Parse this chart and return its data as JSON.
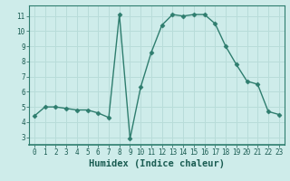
{
  "x": [
    0,
    1,
    2,
    3,
    4,
    5,
    6,
    7,
    8,
    9,
    10,
    11,
    12,
    13,
    14,
    15,
    16,
    17,
    18,
    19,
    20,
    21,
    22,
    23
  ],
  "y": [
    4.4,
    5.0,
    5.0,
    4.9,
    4.8,
    4.8,
    4.6,
    4.3,
    11.1,
    2.9,
    6.3,
    8.6,
    10.4,
    11.1,
    11.0,
    11.1,
    11.1,
    10.5,
    9.0,
    7.8,
    6.7,
    6.5,
    4.7,
    4.5
  ],
  "line_color": "#2e7d6e",
  "marker": "D",
  "markersize": 2.5,
  "linewidth": 1.0,
  "xlabel": "Humidex (Indice chaleur)",
  "xlim": [
    -0.5,
    23.5
  ],
  "ylim": [
    2.5,
    11.7
  ],
  "xticks": [
    0,
    1,
    2,
    3,
    4,
    5,
    6,
    7,
    8,
    9,
    10,
    11,
    12,
    13,
    14,
    15,
    16,
    17,
    18,
    19,
    20,
    21,
    22,
    23
  ],
  "yticks": [
    3,
    4,
    5,
    6,
    7,
    8,
    9,
    10,
    11
  ],
  "bg_color": "#ceecea",
  "grid_color": "#b8dcd9",
  "spine_color": "#2e7d6e",
  "tick_fontsize": 5.5,
  "xlabel_fontsize": 7.5,
  "text_color": "#1a5c52"
}
